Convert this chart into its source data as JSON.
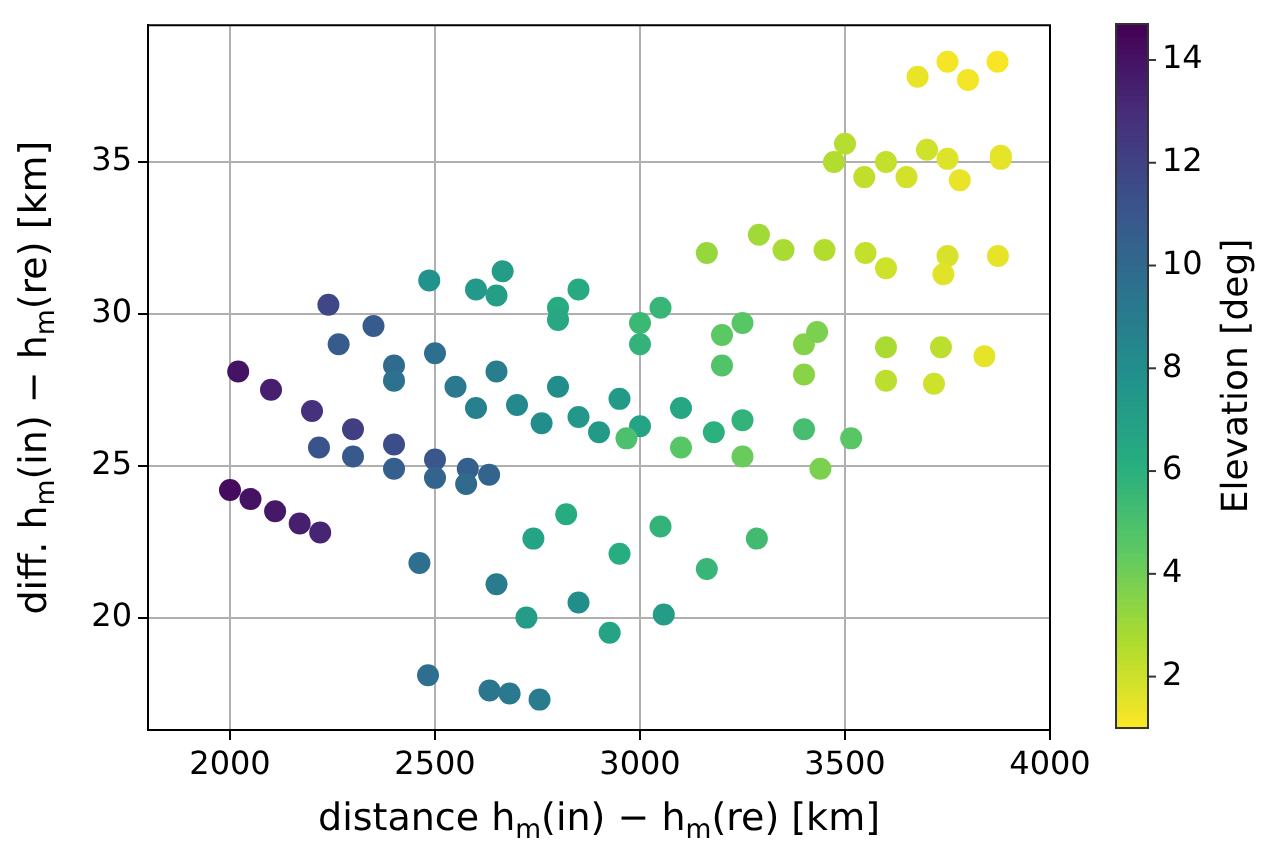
{
  "chart_data": {
    "type": "scatter",
    "xlabel": "distance h$_{m}$(in) − h$_{m}$(re) [km]",
    "ylabel": "diff. h$_{m}$(in) − h$_{m}$(re) [km]",
    "clabel": "Elevation [deg]",
    "xlim": [
      1800,
      4000
    ],
    "xticks": [
      2000,
      2500,
      3000,
      3500,
      4000
    ],
    "ylim": [
      16.3,
      39.5
    ],
    "yticks": [
      20,
      25,
      30,
      35
    ],
    "clim": [
      1.0,
      14.7
    ],
    "cticks": [
      2,
      4,
      6,
      8,
      10,
      12,
      14
    ],
    "grid": true,
    "marker": "circle",
    "x": [
      2000,
      2050,
      2110,
      2170,
      2220,
      2020,
      2100,
      2200,
      2300,
      2400,
      2500,
      2580,
      2632,
      2217,
      2300,
      2400,
      2500,
      2576,
      2240,
      2350,
      2500,
      2650,
      2800,
      2950,
      3100,
      3250,
      3400,
      3515,
      2265,
      2400,
      2550,
      2700,
      2850,
      3000,
      3180,
      2400,
      2600,
      2760,
      2900,
      2486,
      2650,
      2800,
      3000,
      3200,
      3400,
      3600,
      3734,
      2665,
      2850,
      3050,
      3250,
      3432,
      2600,
      2800,
      3000,
      3200,
      3400,
      3600,
      3717,
      2967,
      3100,
      3250,
      3440,
      3163,
      3350,
      3550,
      3750,
      3873,
      3290,
      3450,
      3600,
      3740,
      3473,
      3600,
      3750,
      3880,
      3500,
      3700,
      3880,
      3547,
      3650,
      3780,
      3677,
      3800,
      3750,
      3872,
      3840,
      2820,
      3050,
      3285,
      2740,
      2950,
      3163,
      2462,
      2650,
      2850,
      3058,
      2723,
      2926,
      2483,
      2633,
      2682,
      2755
    ],
    "values": [
      24.2,
      23.9,
      23.5,
      23.1,
      22.8,
      28.1,
      27.5,
      26.8,
      26.2,
      25.7,
      25.2,
      24.9,
      24.7,
      25.6,
      25.3,
      24.9,
      24.6,
      24.4,
      30.3,
      29.6,
      28.7,
      28.1,
      27.6,
      27.2,
      26.9,
      26.5,
      26.2,
      25.9,
      29.0,
      28.3,
      27.6,
      27.0,
      26.6,
      26.3,
      26.1,
      27.8,
      26.9,
      26.4,
      26.1,
      31.1,
      30.6,
      30.2,
      29.7,
      29.3,
      29.0,
      28.9,
      28.9,
      31.4,
      30.8,
      30.2,
      29.7,
      29.4,
      30.8,
      29.8,
      29.0,
      28.3,
      28.0,
      27.8,
      27.7,
      25.9,
      25.6,
      25.3,
      24.9,
      32.0,
      32.1,
      32.0,
      31.9,
      31.9,
      32.6,
      32.1,
      31.5,
      31.3,
      35.0,
      35.0,
      35.1,
      35.1,
      35.6,
      35.4,
      35.2,
      34.5,
      34.5,
      34.4,
      37.8,
      37.7,
      38.3,
      38.3,
      28.6,
      23.4,
      23.0,
      22.6,
      22.6,
      22.1,
      21.6,
      21.8,
      21.1,
      20.5,
      20.1,
      20.0,
      19.5,
      18.1,
      17.6,
      17.5,
      17.3
    ],
    "cvalues": [
      14.3,
      14.0,
      13.8,
      13.5,
      13.3,
      14.0,
      13.5,
      12.8,
      12.2,
      11.5,
      11.0,
      10.6,
      10.3,
      11.2,
      10.9,
      10.6,
      10.3,
      10.0,
      11.8,
      10.8,
      9.8,
      8.9,
      8.0,
      7.3,
      6.6,
      5.8,
      5.2,
      4.6,
      10.8,
      10.0,
      9.2,
      8.3,
      7.5,
      6.8,
      6.0,
      9.6,
      8.8,
      8.0,
      7.3,
      7.8,
      7.0,
      6.3,
      5.5,
      4.5,
      3.6,
      2.8,
      2.4,
      7.2,
      6.4,
      5.6,
      4.6,
      3.8,
      7.4,
      6.5,
      5.8,
      4.8,
      3.5,
      2.4,
      2.0,
      5.0,
      4.6,
      4.2,
      3.8,
      3.2,
      2.8,
      2.2,
      1.8,
      1.5,
      3.0,
      2.6,
      2.0,
      1.6,
      2.6,
      2.2,
      1.7,
      1.5,
      2.5,
      2.0,
      1.5,
      2.3,
      1.9,
      1.4,
      1.4,
      1.2,
      1.2,
      1.1,
      1.5,
      6.3,
      5.8,
      5.3,
      6.8,
      6.2,
      5.6,
      9.8,
      9.0,
      8.0,
      7.2,
      7.2,
      6.8,
      9.8,
      9.4,
      9.2,
      9.0
    ]
  }
}
